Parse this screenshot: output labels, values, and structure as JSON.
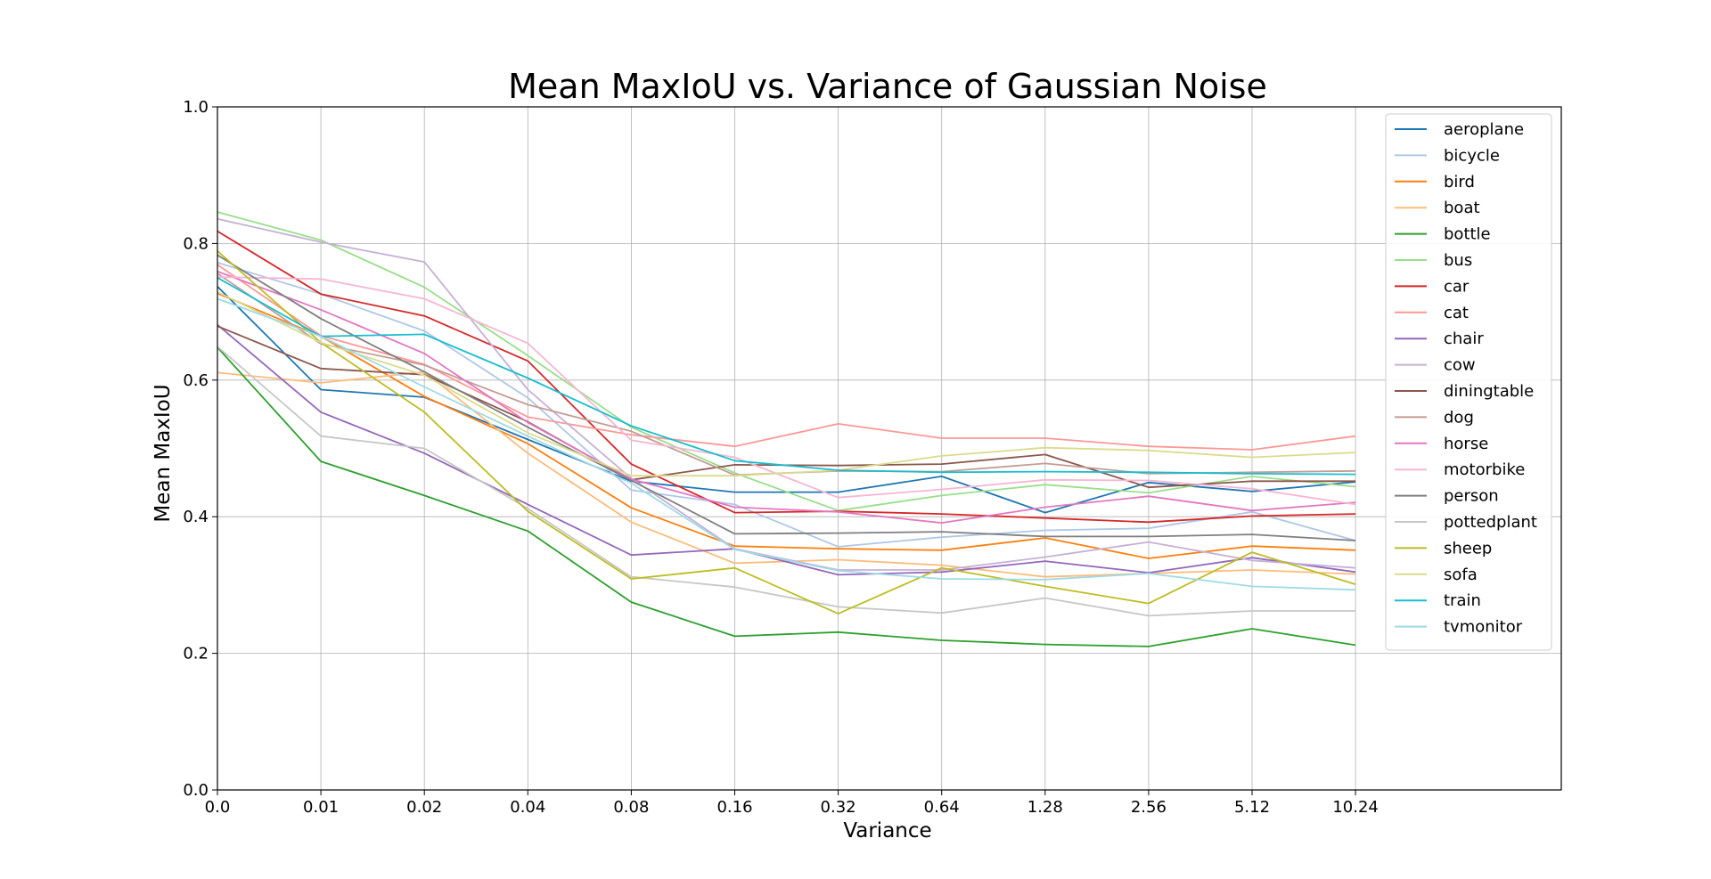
{
  "chart_data": {
    "type": "line",
    "title": "Mean MaxIoU vs. Variance of Gaussian Noise",
    "xlabel": "Variance",
    "ylabel": "Mean MaxIoU",
    "ylim": [
      0.0,
      1.0
    ],
    "grid": true,
    "legend_position": "top-right",
    "categories": [
      "0.0",
      "0.01",
      "0.02",
      "0.04",
      "0.08",
      "0.16",
      "0.32",
      "0.64",
      "1.28",
      "2.56",
      "5.12",
      "10.24"
    ],
    "yticks": [
      "0.0",
      "0.2",
      "0.4",
      "0.6",
      "0.8",
      "1.0"
    ],
    "series": [
      {
        "name": "aeroplane",
        "color": "#1f77b4",
        "values": [
          0.737,
          0.586,
          0.575,
          0.513,
          0.452,
          0.436,
          0.436,
          0.459,
          0.406,
          0.45,
          0.437,
          0.451
        ]
      },
      {
        "name": "bicycle",
        "color": "#aec7e8",
        "values": [
          0.772,
          0.726,
          0.672,
          0.574,
          0.439,
          0.418,
          0.356,
          0.37,
          0.38,
          0.383,
          0.407,
          0.365
        ]
      },
      {
        "name": "bird",
        "color": "#ff7f0e",
        "values": [
          0.727,
          0.664,
          0.576,
          0.507,
          0.413,
          0.357,
          0.353,
          0.351,
          0.369,
          0.339,
          0.357,
          0.351
        ]
      },
      {
        "name": "boat",
        "color": "#ffbb78",
        "values": [
          0.611,
          0.596,
          0.612,
          0.493,
          0.392,
          0.332,
          0.337,
          0.329,
          0.312,
          0.317,
          0.322,
          0.316
        ]
      },
      {
        "name": "bottle",
        "color": "#2ca02c",
        "values": [
          0.648,
          0.481,
          0.431,
          0.379,
          0.275,
          0.225,
          0.231,
          0.219,
          0.213,
          0.21,
          0.236,
          0.212
        ]
      },
      {
        "name": "bus",
        "color": "#98df8a",
        "values": [
          0.846,
          0.805,
          0.736,
          0.636,
          0.531,
          0.464,
          0.409,
          0.431,
          0.447,
          0.435,
          0.459,
          0.444
        ]
      },
      {
        "name": "car",
        "color": "#d62728",
        "values": [
          0.818,
          0.726,
          0.694,
          0.628,
          0.477,
          0.406,
          0.408,
          0.404,
          0.398,
          0.392,
          0.401,
          0.404
        ]
      },
      {
        "name": "cat",
        "color": "#ff9896",
        "values": [
          0.769,
          0.665,
          0.623,
          0.546,
          0.52,
          0.503,
          0.536,
          0.515,
          0.515,
          0.503,
          0.498,
          0.518
        ]
      },
      {
        "name": "chair",
        "color": "#9467bd",
        "values": [
          0.681,
          0.553,
          0.493,
          0.418,
          0.344,
          0.353,
          0.315,
          0.319,
          0.335,
          0.318,
          0.34,
          0.319
        ]
      },
      {
        "name": "cow",
        "color": "#c5b0d5",
        "values": [
          0.836,
          0.802,
          0.773,
          0.586,
          0.456,
          0.353,
          0.322,
          0.322,
          0.341,
          0.363,
          0.336,
          0.325
        ]
      },
      {
        "name": "diningtable",
        "color": "#8c564b",
        "values": [
          0.679,
          0.617,
          0.608,
          0.539,
          0.454,
          0.476,
          0.475,
          0.477,
          0.491,
          0.443,
          0.452,
          0.452
        ]
      },
      {
        "name": "dog",
        "color": "#c49c94",
        "values": [
          0.756,
          0.653,
          0.622,
          0.564,
          0.525,
          0.461,
          0.467,
          0.466,
          0.478,
          0.463,
          0.465,
          0.467
        ]
      },
      {
        "name": "horse",
        "color": "#e377c2",
        "values": [
          0.759,
          0.703,
          0.639,
          0.538,
          0.455,
          0.414,
          0.407,
          0.391,
          0.414,
          0.43,
          0.409,
          0.421
        ]
      },
      {
        "name": "motorbike",
        "color": "#f7b6d2",
        "values": [
          0.751,
          0.748,
          0.719,
          0.654,
          0.512,
          0.487,
          0.428,
          0.44,
          0.454,
          0.453,
          0.441,
          0.418
        ]
      },
      {
        "name": "person",
        "color": "#7f7f7f",
        "values": [
          0.783,
          0.69,
          0.612,
          0.531,
          0.453,
          0.375,
          0.376,
          0.378,
          0.371,
          0.371,
          0.374,
          0.365
        ]
      },
      {
        "name": "pottedplant",
        "color": "#c7c7c7",
        "values": [
          0.649,
          0.518,
          0.5,
          0.412,
          0.312,
          0.297,
          0.268,
          0.259,
          0.281,
          0.255,
          0.262,
          0.262
        ]
      },
      {
        "name": "sheep",
        "color": "#bcbd22",
        "values": [
          0.789,
          0.655,
          0.553,
          0.408,
          0.309,
          0.325,
          0.258,
          0.325,
          0.298,
          0.273,
          0.348,
          0.301
        ]
      },
      {
        "name": "sofa",
        "color": "#dbdb8d",
        "values": [
          0.729,
          0.655,
          0.607,
          0.523,
          0.46,
          0.46,
          0.468,
          0.489,
          0.501,
          0.497,
          0.487,
          0.494
        ]
      },
      {
        "name": "train",
        "color": "#17becf",
        "values": [
          0.75,
          0.664,
          0.667,
          0.603,
          0.533,
          0.482,
          0.468,
          0.465,
          0.466,
          0.465,
          0.463,
          0.462
        ]
      },
      {
        "name": "tvmonitor",
        "color": "#9edae5",
        "values": [
          0.719,
          0.664,
          0.59,
          0.518,
          0.449,
          0.352,
          0.321,
          0.309,
          0.308,
          0.317,
          0.298,
          0.293
        ]
      }
    ]
  }
}
